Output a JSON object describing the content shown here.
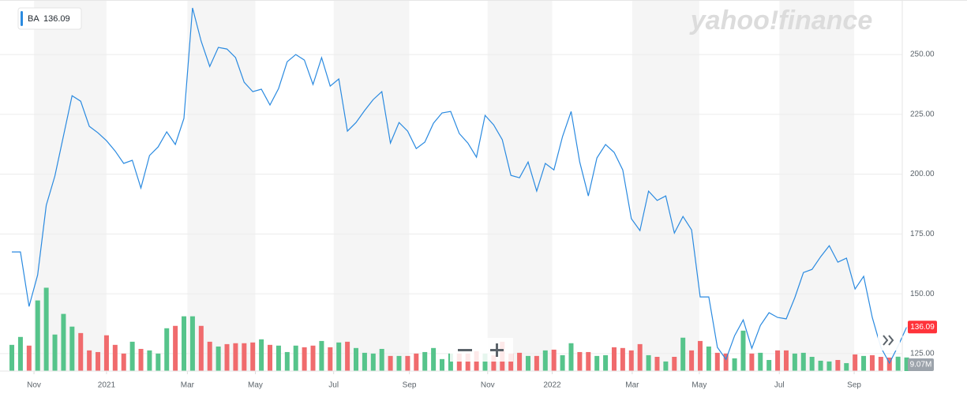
{
  "chart_data": {
    "type": "line",
    "watermark": "yahoo!finance",
    "series": [
      {
        "name": "BA",
        "color": "#2a8ae0",
        "values": [
          167.5,
          167.5,
          144.7,
          157.9,
          187.0,
          199.2,
          216.0,
          232.8,
          230.5,
          220.0,
          217.3,
          214.0,
          209.7,
          204.5,
          205.8,
          194.2,
          207.8,
          211.4,
          217.7,
          212.4,
          223.3,
          269.5,
          255.6,
          245.0,
          253.0,
          252.3,
          248.7,
          238.4,
          234.5,
          235.5,
          228.9,
          235.8,
          247.0,
          250.0,
          247.7,
          237.5,
          248.7,
          236.8,
          239.8,
          218.0,
          221.6,
          226.6,
          231.2,
          234.5,
          213.0,
          221.6,
          218.0,
          210.7,
          213.4,
          221.3,
          225.6,
          226.2,
          217.0,
          213.0,
          207.1,
          224.6,
          220.6,
          214.4,
          199.5,
          198.5,
          205.1,
          192.9,
          204.5,
          201.8,
          215.7,
          226.2,
          205.1,
          190.9,
          206.8,
          212.4,
          209.1,
          201.8,
          181.4,
          176.4,
          192.9,
          189.0,
          190.9,
          175.4,
          182.3,
          176.7,
          148.7,
          148.7,
          127.6,
          122.6,
          132.5,
          139.1,
          127.2,
          136.8,
          142.1,
          140.1,
          139.5,
          148.4,
          158.9,
          160.2,
          165.5,
          170.1,
          163.2,
          164.9,
          152.0,
          157.3,
          140.1,
          127.6,
          121.0,
          128.2,
          136.09
        ]
      }
    ],
    "volume": {
      "up_color": "#56c48b",
      "down_color": "#f06b6d",
      "lim": [
        0,
        248
      ],
      "last_label": "9.07M",
      "values": [
        17.5,
        22.8,
        17.0,
        47.2,
        55.7,
        24.4,
        38.2,
        29.7,
        25.4,
        13.8,
        12.7,
        23.9,
        17.5,
        11.7,
        19.6,
        14.8,
        13.8,
        11.7,
        28.6,
        30.2,
        36.6,
        36.6,
        30.2,
        19.6,
        16.4,
        18.0,
        18.6,
        18.6,
        19.1,
        21.2,
        17.5,
        17.0,
        12.7,
        17.0,
        15.9,
        17.0,
        20.1,
        15.9,
        19.1,
        19.6,
        15.4,
        12.2,
        11.7,
        14.8,
        10.1,
        10.1,
        10.1,
        11.7,
        12.7,
        15.4,
        8.0,
        11.7,
        11.7,
        11.7,
        13.3,
        11.7,
        10.6,
        19.6,
        11.7,
        12.2,
        10.1,
        10.1,
        13.8,
        14.3,
        10.6,
        18.6,
        12.7,
        12.7,
        10.1,
        10.6,
        15.9,
        15.4,
        13.8,
        18.0,
        10.6,
        9.5,
        6.4,
        9.5,
        22.3,
        13.8,
        20.1,
        16.4,
        12.2,
        11.7,
        8.5,
        27.0,
        11.7,
        12.2,
        7.4,
        13.8,
        13.8,
        11.7,
        12.2,
        9.5,
        6.9,
        6.4,
        7.4,
        5.3,
        11.1,
        10.1,
        10.6,
        9.5,
        9.0,
        9.6,
        9.07
      ]
    },
    "last_price_color": "#ff333a",
    "ylim": [
      117.7,
      272.8
    ],
    "yticks": [
      {
        "value": 125,
        "label": "125.00"
      },
      {
        "value": 150,
        "label": "150.00"
      },
      {
        "value": 175,
        "label": "175.00"
      },
      {
        "value": 200,
        "label": "200.00"
      },
      {
        "value": 225,
        "label": "225.00"
      },
      {
        "value": 250,
        "label": "250.00"
      }
    ],
    "xlim": [
      -1.38,
      103.49
    ],
    "xticks": [
      {
        "value": 2.57,
        "label": "Nov"
      },
      {
        "value": 11.0,
        "label": "2021"
      },
      {
        "value": 20.4,
        "label": "Mar"
      },
      {
        "value": 28.3,
        "label": "May"
      },
      {
        "value": 37.4,
        "label": "Jul"
      },
      {
        "value": 46.2,
        "label": "Sep"
      },
      {
        "value": 55.3,
        "label": "Nov"
      },
      {
        "value": 62.8,
        "label": "2022"
      },
      {
        "value": 72.1,
        "label": "Mar"
      },
      {
        "value": 79.9,
        "label": "May"
      },
      {
        "value": 89.2,
        "label": "Jul"
      },
      {
        "value": 97.9,
        "label": "Sep"
      }
    ],
    "grid": true
  }
}
